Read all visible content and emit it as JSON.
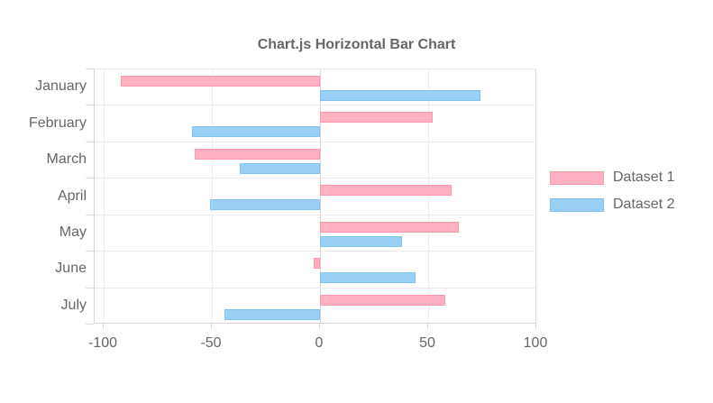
{
  "chart_data": {
    "type": "bar",
    "orientation": "horizontal",
    "title": "Chart.js Horizontal Bar Chart",
    "categories": [
      "January",
      "February",
      "March",
      "April",
      "May",
      "June",
      "July"
    ],
    "series": [
      {
        "name": "Dataset 1",
        "fill": "#ffb1c1",
        "border": "#ff94ab",
        "values": [
          -92,
          52,
          -58,
          61,
          64,
          -3,
          58
        ]
      },
      {
        "name": "Dataset 2",
        "fill": "#9ad0f5",
        "border": "#7fc3ef",
        "values": [
          74,
          -59,
          -37,
          -51,
          38,
          44,
          -44
        ]
      }
    ],
    "xlim": [
      -100,
      100
    ],
    "x_ticks": [
      -100,
      -50,
      0,
      50,
      100
    ],
    "legend_position": "right",
    "grid": true,
    "colors": {
      "text": "#666666",
      "grid": "#ebebeb",
      "grid_strong": "#d6d6d6"
    }
  }
}
